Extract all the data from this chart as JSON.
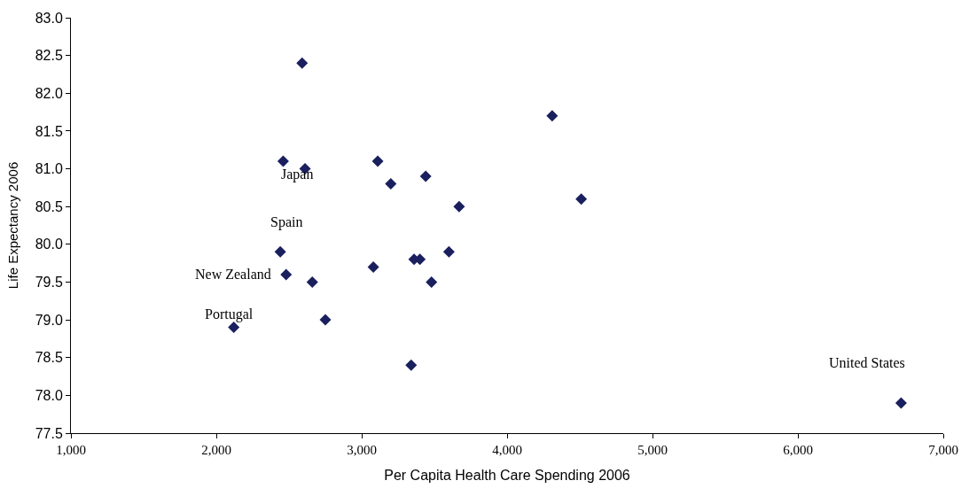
{
  "chart_data": {
    "type": "scatter",
    "xlabel": "Per Capita Health Care Spending 2006",
    "ylabel": "Life Expectancy 2006",
    "x": [
      2590,
      4310,
      2460,
      3110,
      2610,
      3440,
      3200,
      4510,
      3670,
      2440,
      3600,
      3080,
      3360,
      3400,
      2480,
      2660,
      3480,
      2750,
      2120,
      3340,
      6710
    ],
    "values": [
      82.4,
      81.7,
      81.1,
      81.1,
      81.0,
      80.9,
      80.8,
      80.6,
      80.5,
      79.9,
      79.9,
      79.7,
      79.8,
      79.8,
      79.6,
      79.5,
      79.5,
      79.0,
      78.9,
      78.4,
      77.9
    ],
    "color": "#1a1f5e",
    "marker": "diamond",
    "xlim": [
      1000,
      7000
    ],
    "xticks": [
      {
        "value": 1000,
        "label": "1,000"
      },
      {
        "value": 2000,
        "label": "2,000"
      },
      {
        "value": 3000,
        "label": "3,000"
      },
      {
        "value": 4000,
        "label": "4,000"
      },
      {
        "value": 5000,
        "label": "5,000"
      },
      {
        "value": 6000,
        "label": "6,000"
      },
      {
        "value": 7000,
        "label": "7,000"
      }
    ],
    "ylim": [
      77.5,
      83.0
    ],
    "yticks": [
      {
        "value": 77.5,
        "label": "77.5"
      },
      {
        "value": 78.0,
        "label": "78.0"
      },
      {
        "value": 78.5,
        "label": "78.5"
      },
      {
        "value": 79.0,
        "label": "79.0"
      },
      {
        "value": 79.5,
        "label": "79.5"
      },
      {
        "value": 80.0,
        "label": "80.0"
      },
      {
        "value": 80.5,
        "label": "80.5"
      },
      {
        "value": 81.0,
        "label": "81.0"
      },
      {
        "value": 81.5,
        "label": "81.5"
      },
      {
        "value": 82.0,
        "label": "82.0"
      },
      {
        "value": 82.5,
        "label": "82.5"
      },
      {
        "value": 83.0,
        "label": "83.0"
      }
    ],
    "annotations": [
      {
        "text": "Japan",
        "x": 2610,
        "y": 81.0
      },
      {
        "text": "Spain",
        "x": 2440,
        "y": 79.9
      },
      {
        "text": "New Zealand",
        "x": 2480,
        "y": 79.6
      },
      {
        "text": "Portugal",
        "x": 2120,
        "y": 78.9
      },
      {
        "text": "United States",
        "x": 6710,
        "y": 77.9
      }
    ]
  }
}
